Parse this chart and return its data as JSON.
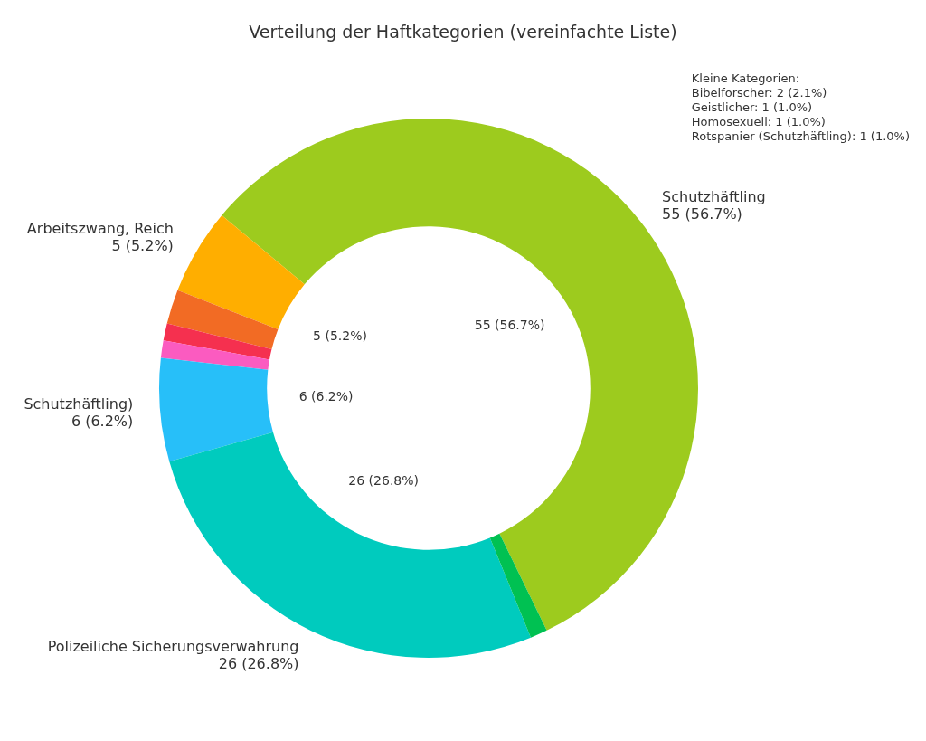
{
  "chart_data": {
    "type": "donut",
    "title": "Verteilung der Haftkategorien (vereinfachte Liste)",
    "categories": [
      "Schutzhäftling",
      "Arbeitszwang, Reich",
      null,
      null,
      null,
      "Schutzhäftling)",
      "Polizeiliche Sicherungsverwahrung",
      null
    ],
    "values": [
      55,
      5,
      2,
      1,
      1,
      6,
      26,
      1
    ],
    "value_labels": [
      "55 (56.7%)",
      "5 (5.2%)",
      null,
      null,
      null,
      "6 (6.2%)",
      "26 (26.8%)",
      null
    ],
    "colors": [
      "#9dcb1e",
      "#ffae00",
      "#f26b24",
      "#f5304f",
      "#fb5bc0",
      "#27bff9",
      "#00cbbe",
      "#00c152"
    ],
    "annotations": [
      "Kleine Kategorien:\nBibelforscher: 2 (2.1%)\nGeistlicher: 1 (1.0%)\nHomosexuell: 1 (1.0%)\nRotspanier (Schutzhäftling): 1 (1.0%)"
    ]
  }
}
